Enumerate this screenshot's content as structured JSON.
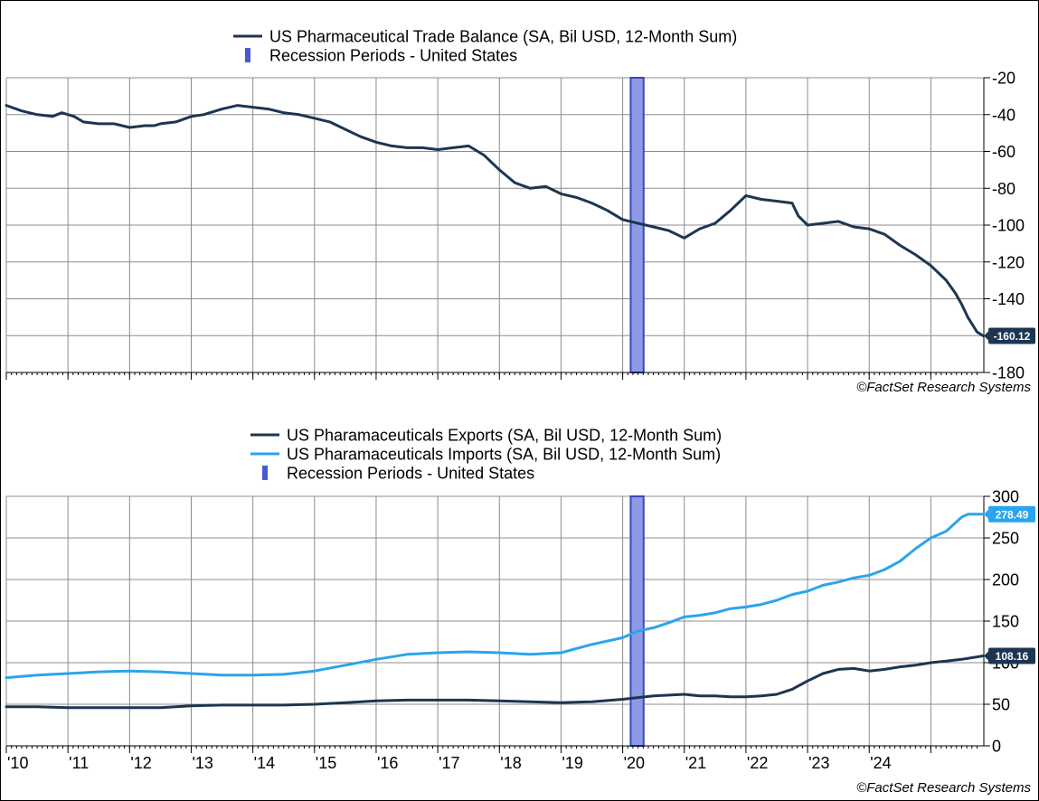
{
  "chart_data": [
    {
      "type": "line",
      "legend": {
        "series_label": "US Pharmaceutical Trade Balance (SA, Bil USD, 12-Month Sum)",
        "recession_label": "Recession Periods - United States"
      },
      "credit": "©FactSet Research Systems",
      "ylim": [
        -180,
        -20
      ],
      "yticks": [
        -20,
        -40,
        -60,
        -80,
        -100,
        -120,
        -140,
        -160,
        -180
      ],
      "yaxis_side": "right",
      "grid": true,
      "recession": [
        2020.13,
        2020.34
      ],
      "series": [
        {
          "name": "US Pharmaceutical Trade Balance (SA, Bil USD, 12-Month Sum)",
          "color": "#1c3651",
          "last_label": "-160.12",
          "x": [
            2010.0,
            2010.25,
            2010.5,
            2010.75,
            2010.9,
            2011.1,
            2011.25,
            2011.5,
            2011.75,
            2012.0,
            2012.25,
            2012.4,
            2012.5,
            2012.75,
            2013.0,
            2013.2,
            2013.5,
            2013.75,
            2014.0,
            2014.25,
            2014.5,
            2014.75,
            2015.0,
            2015.25,
            2015.5,
            2015.75,
            2016.0,
            2016.25,
            2016.5,
            2016.75,
            2017.0,
            2017.25,
            2017.5,
            2017.75,
            2018.0,
            2018.25,
            2018.5,
            2018.75,
            2019.0,
            2019.25,
            2019.5,
            2019.75,
            2020.0,
            2020.25,
            2020.5,
            2020.75,
            2021.0,
            2021.15,
            2021.25,
            2021.5,
            2021.75,
            2022.0,
            2022.25,
            2022.5,
            2022.75,
            2022.85,
            2023.0,
            2023.25,
            2023.5,
            2023.75,
            2024.0,
            2024.25,
            2024.5,
            2024.75,
            2025.0,
            2025.25,
            2025.4,
            2025.5,
            2025.6,
            2025.75,
            2025.85
          ],
          "y": [
            -35,
            -38,
            -40,
            -41,
            -39,
            -41,
            -44,
            -45,
            -45,
            -47,
            -46,
            -46,
            -45,
            -44,
            -41,
            -40,
            -37,
            -35,
            -36,
            -37,
            -39,
            -40,
            -42,
            -44,
            -48,
            -52,
            -55,
            -57,
            -58,
            -58,
            -59,
            -58,
            -57,
            -62,
            -70,
            -77,
            -80,
            -79,
            -83,
            -85,
            -88,
            -92,
            -97,
            -99,
            -101,
            -103,
            -107,
            -104,
            -102,
            -99,
            -92,
            -84,
            -86,
            -87,
            -88,
            -95,
            -100,
            -99,
            -98,
            -101,
            -102,
            -105,
            -111,
            -116,
            -122,
            -130,
            -137,
            -143,
            -150,
            -158,
            -160.12
          ]
        }
      ]
    },
    {
      "type": "line",
      "legend": {
        "exports_label": "US Pharamaceuticals Exports (SA, Bil USD, 12-Month Sum)",
        "imports_label": "US Pharamaceuticals Imports (SA, Bil USD, 12-Month Sum)",
        "recession_label": "Recession Periods - United States"
      },
      "credit": "©FactSet Research Systems",
      "ylim": [
        0,
        300
      ],
      "yticks": [
        300,
        250,
        200,
        150,
        100,
        50,
        0
      ],
      "yaxis_side": "right",
      "grid": true,
      "recession": [
        2020.13,
        2020.34
      ],
      "xticks": [
        "'10",
        "'11",
        "'12",
        "'13",
        "'14",
        "'15",
        "'16",
        "'17",
        "'18",
        "'19",
        "'20",
        "'21",
        "'22",
        "'23",
        "'24"
      ],
      "xtick_values": [
        2010,
        2011,
        2012,
        2013,
        2014,
        2015,
        2016,
        2017,
        2018,
        2019,
        2020,
        2021,
        2022,
        2023,
        2024
      ],
      "series": [
        {
          "name": "US Pharamaceuticals Exports (SA, Bil USD, 12-Month Sum)",
          "color": "#1c3651",
          "last_label": "108.16",
          "x": [
            2010.0,
            2010.5,
            2011.0,
            2011.5,
            2012.0,
            2012.5,
            2013.0,
            2013.5,
            2014.0,
            2014.5,
            2015.0,
            2015.5,
            2016.0,
            2016.5,
            2017.0,
            2017.5,
            2018.0,
            2018.5,
            2019.0,
            2019.5,
            2020.0,
            2020.25,
            2020.5,
            2020.75,
            2021.0,
            2021.25,
            2021.5,
            2021.75,
            2022.0,
            2022.25,
            2022.5,
            2022.75,
            2023.0,
            2023.25,
            2023.5,
            2023.75,
            2024.0,
            2024.25,
            2024.5,
            2024.75,
            2025.0,
            2025.25,
            2025.5,
            2025.75,
            2025.85
          ],
          "y": [
            47,
            47,
            46,
            46,
            46,
            46,
            48,
            49,
            49,
            49,
            50,
            52,
            54,
            55,
            55,
            55,
            54,
            53,
            52,
            53,
            56,
            58,
            60,
            61,
            62,
            60,
            60,
            59,
            59,
            60,
            62,
            68,
            78,
            87,
            92,
            93,
            90,
            92,
            95,
            97,
            100,
            102,
            104,
            107,
            108.16
          ]
        },
        {
          "name": "US Pharamaceuticals Imports (SA, Bil USD, 12-Month Sum)",
          "color": "#2aa4ee",
          "last_label": "278.49",
          "x": [
            2010.0,
            2010.5,
            2011.0,
            2011.5,
            2012.0,
            2012.5,
            2013.0,
            2013.5,
            2014.0,
            2014.5,
            2015.0,
            2015.5,
            2016.0,
            2016.5,
            2017.0,
            2017.5,
            2018.0,
            2018.5,
            2019.0,
            2019.5,
            2020.0,
            2020.25,
            2020.5,
            2020.75,
            2021.0,
            2021.25,
            2021.5,
            2021.75,
            2022.0,
            2022.25,
            2022.5,
            2022.75,
            2023.0,
            2023.25,
            2023.5,
            2023.75,
            2024.0,
            2024.25,
            2024.5,
            2024.75,
            2025.0,
            2025.25,
            2025.5,
            2025.6,
            2025.75,
            2025.85
          ],
          "y": [
            82,
            85,
            87,
            89,
            90,
            89,
            87,
            85,
            85,
            86,
            90,
            97,
            104,
            110,
            112,
            113,
            112,
            110,
            112,
            122,
            130,
            138,
            142,
            148,
            155,
            157,
            160,
            165,
            167,
            170,
            175,
            182,
            186,
            193,
            197,
            202,
            205,
            212,
            222,
            237,
            250,
            258,
            275,
            278.49,
            278.49,
            278.49
          ]
        }
      ]
    }
  ]
}
